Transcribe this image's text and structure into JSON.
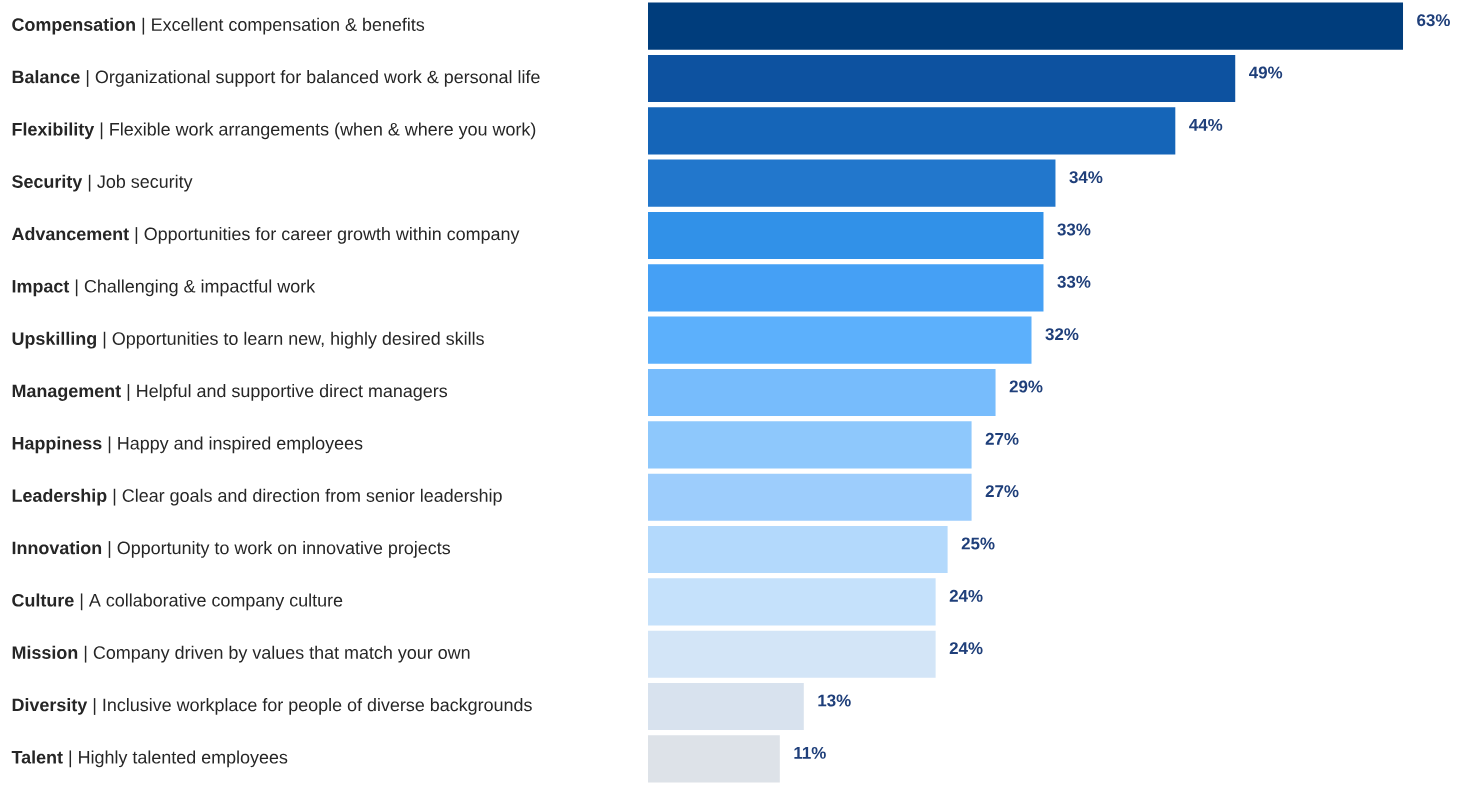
{
  "chart_data": {
    "type": "bar",
    "orientation": "horizontal",
    "categories": [
      "**Compensation** | Excellent compensation & benefits",
      "**Balance** | Organizational support for balanced work & personal life",
      "**Flexibility** | Flexible work arrangements (when & where you work)",
      "**Security** | Job security",
      "**Advancement** | Opportunities for career growth within company",
      "**Impact** | Challenging & impactful work",
      "**Upskilling** | Opportunities to learn new, highly desired skills",
      "**Management** | Helpful and supportive direct managers",
      "**Happiness** | Happy and inspired employees",
      "**Leadership** | Clear goals and direction from senior leadership",
      "**Innovation** | Opportunity to work on innovative projects",
      "**Culture** | A collaborative company culture",
      "**Mission** | Company driven by values that match your own",
      "**Diversity** | Inclusive workplace for people of diverse backgrounds",
      "**Talent** | Highly talented employees"
    ],
    "values": [
      63,
      49,
      44,
      34,
      33,
      33,
      32,
      29,
      27,
      27,
      25,
      24,
      24,
      13,
      11
    ],
    "value_labels": [
      "63%",
      "49%",
      "44%",
      "34%",
      "33%",
      "33%",
      "32%",
      "29%",
      "27%",
      "27%",
      "25%",
      "24%",
      "24%",
      "13%",
      "11%"
    ],
    "colors": [
      "#003d7c",
      "#0d52a0",
      "#1565b8",
      "#2277cc",
      "#3191e8",
      "#45a0f5",
      "#5cb0fc",
      "#77bcfc",
      "#8ec8fc",
      "#9dcdfc",
      "#b3d9fc",
      "#c5e1fb",
      "#d3e5f7",
      "#d8e2ee",
      "#dde2e8"
    ]
  }
}
